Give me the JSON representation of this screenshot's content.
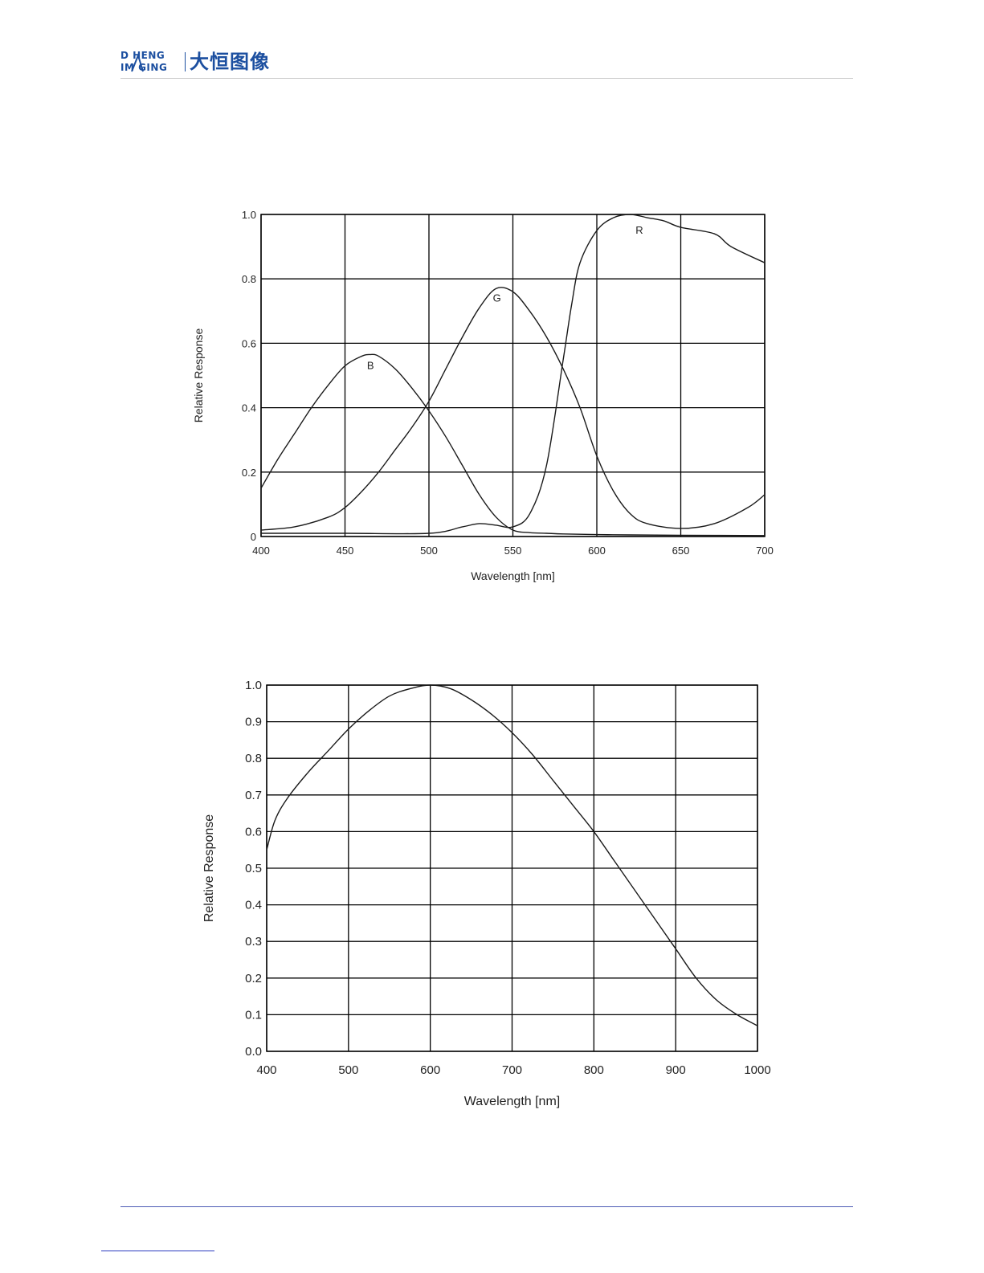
{
  "header": {
    "logo_line1": "D HENG",
    "logo_line2": "IM GING",
    "logo_cn": "大恒图像"
  },
  "colors": {
    "brand": "#1c4fa0",
    "grid": "#000000",
    "curve": "#1a1a1a",
    "footer_rule": "#4d5bb5"
  },
  "chart_data": [
    {
      "type": "line",
      "xlabel": "Wavelength [nm]",
      "ylabel": "Relative Response",
      "xlim": [
        400,
        700
      ],
      "ylim": [
        0,
        1.0
      ],
      "grid": true,
      "xticks": [
        400,
        450,
        500,
        550,
        600,
        650,
        700
      ],
      "xtick_labels": [
        "400",
        "450",
        "500",
        "550",
        "600",
        "650",
        "700"
      ],
      "yticks": [
        0,
        0.2,
        0.4,
        0.6,
        0.8,
        1.0
      ],
      "ytick_labels": [
        "0",
        "0.2",
        "0.4",
        "0.6",
        "0.8",
        "1.0"
      ],
      "series": [
        {
          "name": "B",
          "label_at": [
            465,
            0.53
          ],
          "x": [
            400,
            410,
            420,
            430,
            440,
            450,
            460,
            465,
            470,
            480,
            490,
            500,
            510,
            520,
            530,
            540,
            550,
            560,
            570,
            580,
            600,
            620,
            650,
            700
          ],
          "y": [
            0.15,
            0.24,
            0.32,
            0.4,
            0.47,
            0.53,
            0.56,
            0.565,
            0.56,
            0.52,
            0.46,
            0.39,
            0.31,
            0.22,
            0.13,
            0.06,
            0.02,
            0.012,
            0.01,
            0.008,
            0.006,
            0.005,
            0.004,
            0.003
          ]
        },
        {
          "name": "G",
          "label_at": [
            540,
            0.74
          ],
          "x": [
            400,
            420,
            440,
            450,
            460,
            470,
            480,
            490,
            500,
            510,
            520,
            530,
            540,
            550,
            560,
            570,
            580,
            590,
            600,
            610,
            620,
            630,
            650,
            670,
            690,
            700
          ],
          "y": [
            0.02,
            0.03,
            0.06,
            0.09,
            0.14,
            0.2,
            0.27,
            0.34,
            0.42,
            0.52,
            0.62,
            0.71,
            0.77,
            0.76,
            0.7,
            0.62,
            0.52,
            0.4,
            0.25,
            0.14,
            0.07,
            0.04,
            0.025,
            0.04,
            0.09,
            0.13
          ]
        },
        {
          "name": "R",
          "label_at": [
            625,
            0.95
          ],
          "x": [
            400,
            450,
            500,
            520,
            530,
            540,
            550,
            560,
            570,
            580,
            585,
            590,
            600,
            610,
            620,
            630,
            640,
            650,
            670,
            680,
            700
          ],
          "y": [
            0.01,
            0.01,
            0.01,
            0.03,
            0.04,
            0.035,
            0.03,
            0.07,
            0.22,
            0.55,
            0.72,
            0.85,
            0.95,
            0.99,
            1.0,
            0.99,
            0.98,
            0.96,
            0.94,
            0.9,
            0.85
          ]
        }
      ]
    },
    {
      "type": "line",
      "xlabel": "Wavelength [nm]",
      "ylabel": "Relative Response",
      "xlim": [
        400,
        1000
      ],
      "ylim": [
        0,
        1.0
      ],
      "grid": true,
      "xticks": [
        400,
        500,
        600,
        700,
        800,
        900,
        1000
      ],
      "xtick_labels": [
        "400",
        "500",
        "600",
        "700",
        "800",
        "900",
        "1000"
      ],
      "yticks": [
        0,
        0.1,
        0.2,
        0.3,
        0.4,
        0.5,
        0.6,
        0.7,
        0.8,
        0.9,
        1.0
      ],
      "ytick_labels": [
        "0.0",
        "0.1",
        "0.2",
        "0.3",
        "0.4",
        "0.5",
        "0.6",
        "0.7",
        "0.8",
        "0.9",
        "1.0"
      ],
      "series": [
        {
          "name": "",
          "x": [
            400,
            410,
            425,
            450,
            475,
            500,
            525,
            550,
            575,
            600,
            625,
            650,
            675,
            700,
            725,
            750,
            775,
            800,
            825,
            850,
            875,
            900,
            925,
            950,
            975,
            1000
          ],
          "y": [
            0.55,
            0.63,
            0.69,
            0.76,
            0.82,
            0.88,
            0.93,
            0.97,
            0.99,
            1.0,
            0.99,
            0.96,
            0.92,
            0.87,
            0.81,
            0.74,
            0.67,
            0.6,
            0.52,
            0.44,
            0.36,
            0.28,
            0.2,
            0.14,
            0.1,
            0.07
          ]
        }
      ]
    }
  ]
}
